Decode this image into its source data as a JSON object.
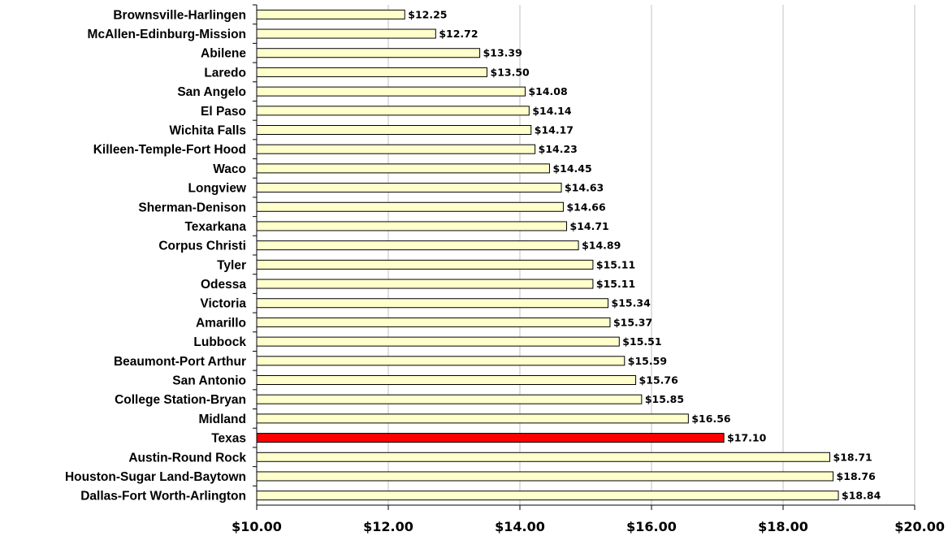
{
  "chart_data": {
    "type": "bar",
    "orientation": "horizontal",
    "title": "",
    "xlabel": "",
    "ylabel": "",
    "xlim": [
      10,
      20
    ],
    "x_ticks": [
      "$10.00",
      "$12.00",
      "$14.00",
      "$16.00",
      "$18.00",
      "$20.00"
    ],
    "x_tick_values": [
      10,
      12,
      14,
      16,
      18,
      20
    ],
    "grid": "vertical",
    "colors": {
      "bar": "#ffffcc",
      "highlight": "#ff0000",
      "edge": "#000000",
      "grid": "#c0c0c0"
    },
    "highlight_category": "Texas",
    "categories": [
      "Brownsville-Harlingen",
      "McAllen-Edinburg-Mission",
      "Abilene",
      "Laredo",
      "San Angelo",
      "El Paso",
      "Wichita Falls",
      "Killeen-Temple-Fort Hood",
      "Waco",
      "Longview",
      "Sherman-Denison",
      "Texarkana",
      "Corpus Christi",
      "Tyler",
      "Odessa",
      "Victoria",
      "Amarillo",
      "Lubbock",
      "Beaumont-Port Arthur",
      "San Antonio",
      "College Station-Bryan",
      "Midland",
      "Texas",
      "Austin-Round Rock",
      "Houston-Sugar Land-Baytown",
      "Dallas-Fort Worth-Arlington"
    ],
    "values": [
      12.25,
      12.72,
      13.39,
      13.5,
      14.08,
      14.14,
      14.17,
      14.23,
      14.45,
      14.63,
      14.66,
      14.71,
      14.89,
      15.11,
      15.11,
      15.34,
      15.37,
      15.51,
      15.59,
      15.76,
      15.85,
      16.56,
      17.1,
      18.71,
      18.76,
      18.84
    ],
    "value_labels": [
      "$12.25",
      "$12.72",
      "$13.39",
      "$13.50",
      "$14.08",
      "$14.14",
      "$14.17",
      "$14.23",
      "$14.45",
      "$14.63",
      "$14.66",
      "$14.71",
      "$14.89",
      "$15.11",
      "$15.11",
      "$15.34",
      "$15.37",
      "$15.51",
      "$15.59",
      "$15.76",
      "$15.85",
      "$16.56",
      "$17.10",
      "$18.71",
      "$18.76",
      "$18.84"
    ]
  }
}
